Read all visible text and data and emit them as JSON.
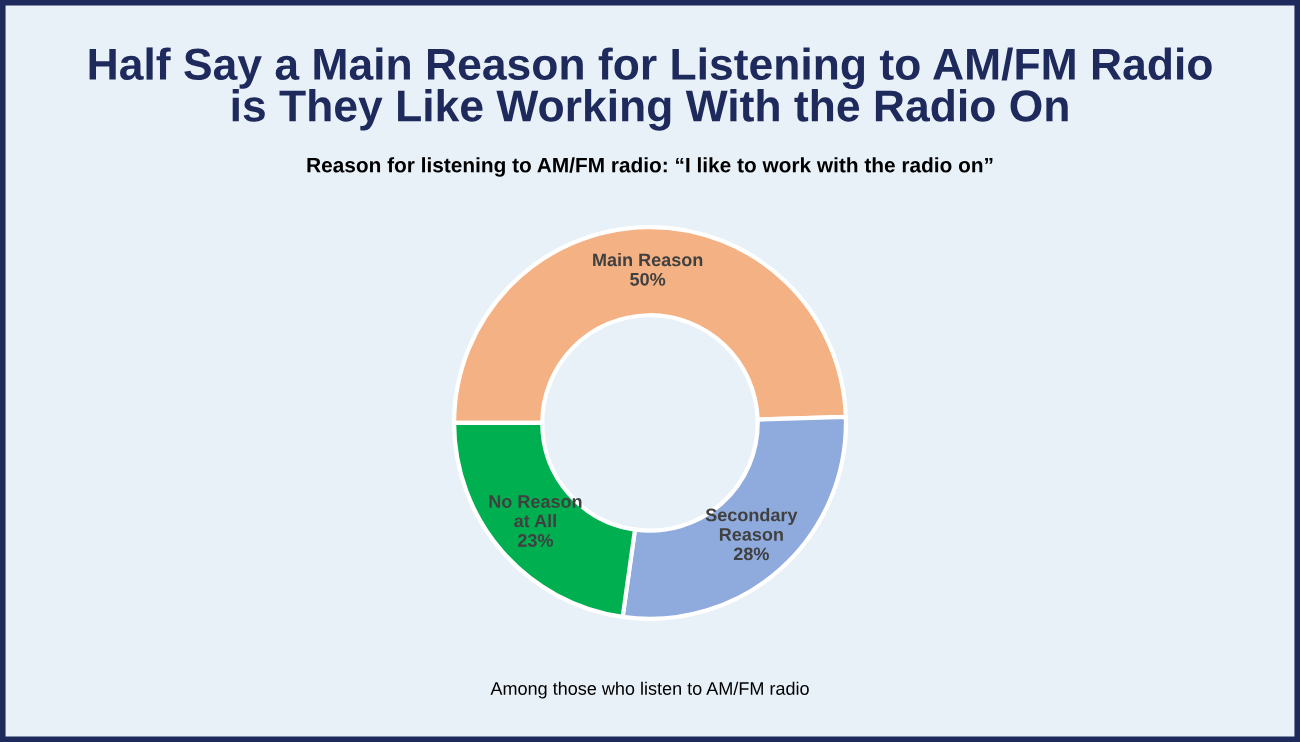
{
  "chart_data": {
    "type": "donut",
    "title": "Half Say a Main Reason for Listening to AM/FM Radio\nis They Like Working With the Radio On",
    "subtitle": "Reason for listening to AM/FM radio: “I like to work with the radio on”",
    "categories": [
      "Main Reason",
      "Secondary\nReason",
      "No Reason\nat All"
    ],
    "values": [
      50,
      28,
      23
    ],
    "colors": [
      "#f4b183",
      "#8faadc",
      "#00b050"
    ],
    "value_labels": [
      "50%",
      "28%",
      "23%"
    ],
    "annotations": [
      "Among those who listen to AM/FM radio"
    ]
  }
}
